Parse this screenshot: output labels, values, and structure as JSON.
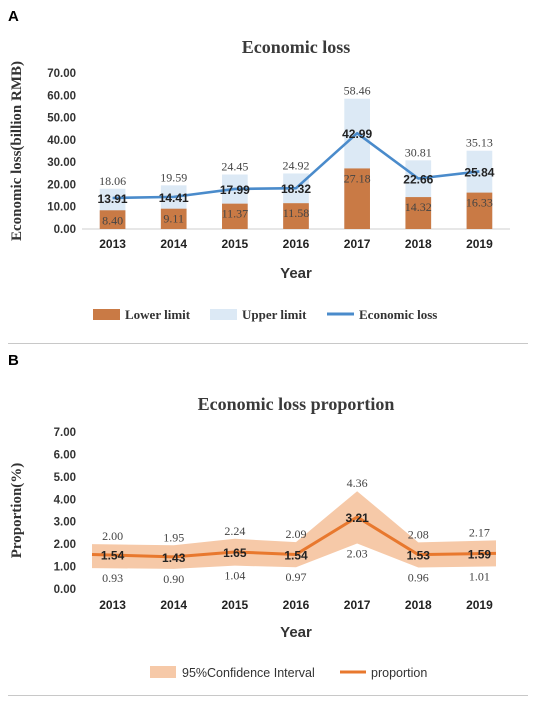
{
  "panels": [
    "A",
    "B"
  ],
  "chart_data": [
    {
      "type": "bar",
      "title": "Economic loss",
      "xlabel": "Year",
      "ylabel": "Economic loss(billion RMB)",
      "ylim": [
        0,
        70
      ],
      "yticks": [
        "0.00",
        "10.00",
        "20.00",
        "30.00",
        "40.00",
        "50.00",
        "60.00",
        "70.00"
      ],
      "categories": [
        "2013",
        "2014",
        "2015",
        "2016",
        "2017",
        "2018",
        "2019"
      ],
      "series": [
        {
          "name": "Lower limit",
          "kind": "bar",
          "color": "#c97a45",
          "values": [
            8.4,
            9.11,
            11.37,
            11.58,
            27.18,
            14.32,
            16.33
          ],
          "labels": [
            "8.40",
            "9.11",
            "11.37",
            "11.58",
            "27.18",
            "14.32",
            "16.33"
          ]
        },
        {
          "name": "Upper limit",
          "kind": "bar",
          "color": "#dce9f5",
          "values": [
            18.06,
            19.59,
            24.45,
            24.92,
            58.46,
            30.81,
            35.13
          ],
          "labels": [
            "18.06",
            "19.59",
            "24.45",
            "24.92",
            "58.46",
            "30.81",
            "35.13"
          ]
        },
        {
          "name": "Economic loss",
          "kind": "line",
          "color": "#4a8bcb",
          "values": [
            13.91,
            14.41,
            17.99,
            18.32,
            42.99,
            22.66,
            25.84
          ],
          "labels": [
            "13.91",
            "14.41",
            "17.99",
            "18.32",
            "42.99",
            "22.66",
            "25.84"
          ]
        }
      ],
      "legend_position": "bottom"
    },
    {
      "type": "line",
      "title": "Economic loss proportion",
      "xlabel": "Year",
      "ylabel": "Proportion(%)",
      "ylim": [
        0,
        7
      ],
      "yticks": [
        "0.00",
        "1.00",
        "2.00",
        "3.00",
        "4.00",
        "5.00",
        "6.00",
        "7.00"
      ],
      "categories": [
        "2013",
        "2014",
        "2015",
        "2016",
        "2017",
        "2018",
        "2019"
      ],
      "series": [
        {
          "name": "95%Confidence Interval",
          "kind": "band",
          "color": "#f6c9a8",
          "lower": [
            0.93,
            0.9,
            1.04,
            0.97,
            2.03,
            0.96,
            1.01
          ],
          "upper": [
            2.0,
            1.95,
            2.24,
            2.09,
            4.36,
            2.08,
            2.17
          ],
          "lower_labels": [
            "0.93",
            "0.90",
            "1.04",
            "0.97",
            "2.03",
            "0.96",
            "1.01"
          ],
          "upper_labels": [
            "2.00",
            "1.95",
            "2.24",
            "2.09",
            "4.36",
            "2.08",
            "2.17"
          ]
        },
        {
          "name": "proportion",
          "kind": "line",
          "color": "#e8782e",
          "values": [
            1.54,
            1.43,
            1.65,
            1.54,
            3.21,
            1.53,
            1.59
          ],
          "labels": [
            "1.54",
            "1.43",
            "1.65",
            "1.54",
            "3.21",
            "1.53",
            "1.59"
          ]
        }
      ],
      "legend_position": "bottom"
    }
  ]
}
